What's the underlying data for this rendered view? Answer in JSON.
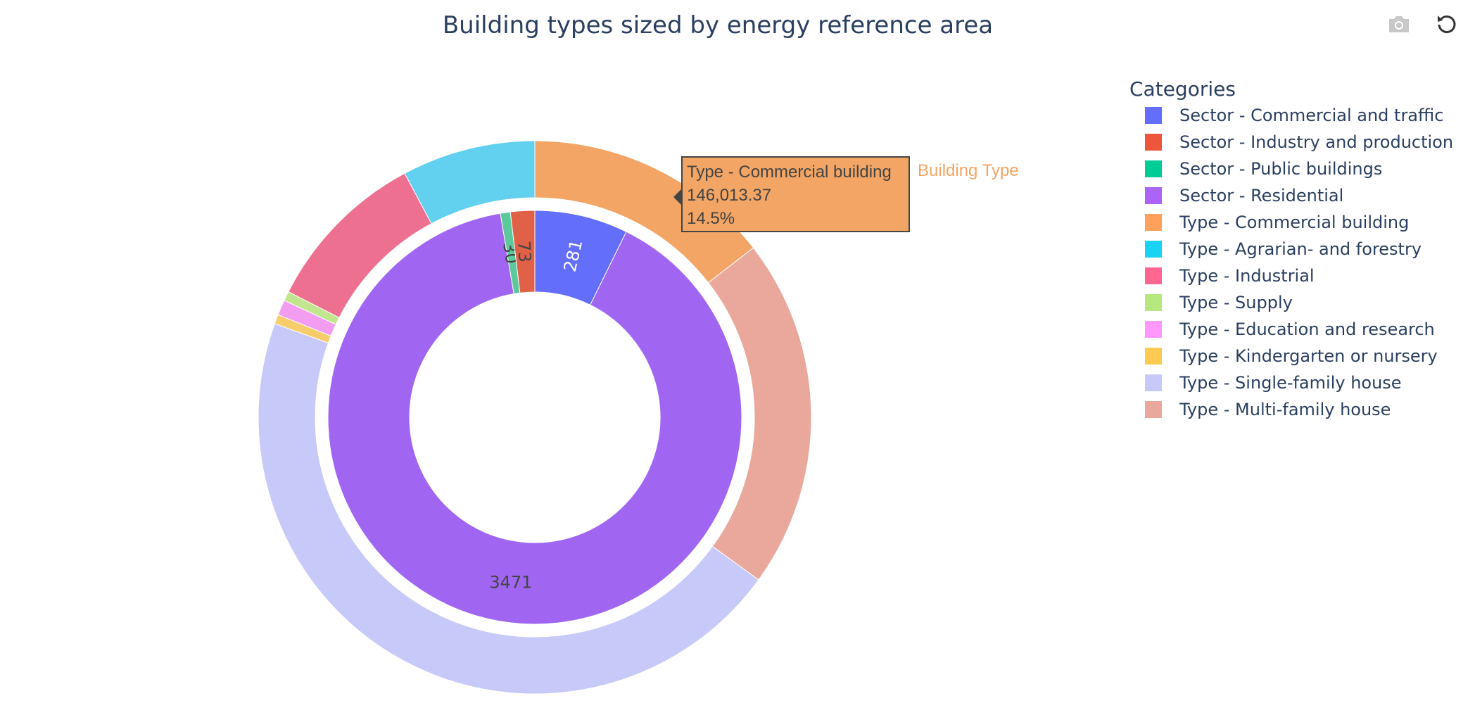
{
  "title": "Building types sized by energy reference area",
  "modebar": {
    "camera_icon": "camera-icon",
    "reset_icon": "reset-icon"
  },
  "legend": {
    "title": "Categories",
    "items": [
      {
        "label": "Sector - Commercial and traffic",
        "color": "#636efa"
      },
      {
        "label": "Sector - Industry and production",
        "color": "#EF553B"
      },
      {
        "label": "Sector - Public buildings",
        "color": "#00cc96"
      },
      {
        "label": "Sector - Residential",
        "color": "#ab63fa"
      },
      {
        "label": "Type - Commercial building",
        "color": "#FFA15A"
      },
      {
        "label": "Type - Agrarian- and forestry",
        "color": "#19d3f3"
      },
      {
        "label": "Type - Industrial",
        "color": "#FF6692"
      },
      {
        "label": "Type - Supply",
        "color": "#B6E880"
      },
      {
        "label": "Type - Education and research",
        "color": "#FF97FF"
      },
      {
        "label": "Type - Kindergarten or nursery",
        "color": "#FECB52"
      },
      {
        "label": "Type - Single-family house",
        "color": "#c7c9f9"
      },
      {
        "label": "Type - Multi-family house",
        "color": "#eaa89c"
      }
    ]
  },
  "hover": {
    "label": "Type - Commercial building",
    "value": "146,013.37",
    "percent": "14.5%",
    "trace_name": "Building Type",
    "bg_color": "#f2a564",
    "trace_color": "#f2a564"
  },
  "chart_data": [
    {
      "type": "pie",
      "ring": "inner",
      "slices": [
        {
          "label": "Sector - Commercial and traffic",
          "value": 281,
          "text": "281",
          "color": "#636efa"
        },
        {
          "label": "Sector - Residential",
          "value": 3471,
          "text": "3471",
          "color": "#a066f2"
        },
        {
          "label": "Sector - Public buildings",
          "value": 30,
          "text": "30",
          "color": "#5bc99b"
        },
        {
          "label": "Sector - Industry and production",
          "value": 73,
          "text": "73",
          "color": "#e06048"
        }
      ]
    },
    {
      "type": "pie",
      "ring": "outer",
      "name": "Building Type",
      "slices": [
        {
          "label": "Type - Commercial building",
          "percent": 14.5,
          "color": "#f2a564"
        },
        {
          "label": "Type - Multi-family house",
          "percent": 20.5,
          "color": "#eaa89c"
        },
        {
          "label": "Type - Single-family house",
          "percent": 45.5,
          "color": "#c7c9f9"
        },
        {
          "label": "Type - Kindergarten or nursery",
          "percent": 0.55,
          "color": "#f7cd6b"
        },
        {
          "label": "Type - Education and research",
          "percent": 0.9,
          "color": "#f29cf2"
        },
        {
          "label": "Type - Supply",
          "percent": 0.55,
          "color": "#c2e68f"
        },
        {
          "label": "Type - Industrial",
          "percent": 9.7,
          "color": "#ee7090"
        },
        {
          "label": "Type - Agrarian- and forestry",
          "percent": 7.8,
          "color": "#62d0ef"
        }
      ]
    }
  ]
}
